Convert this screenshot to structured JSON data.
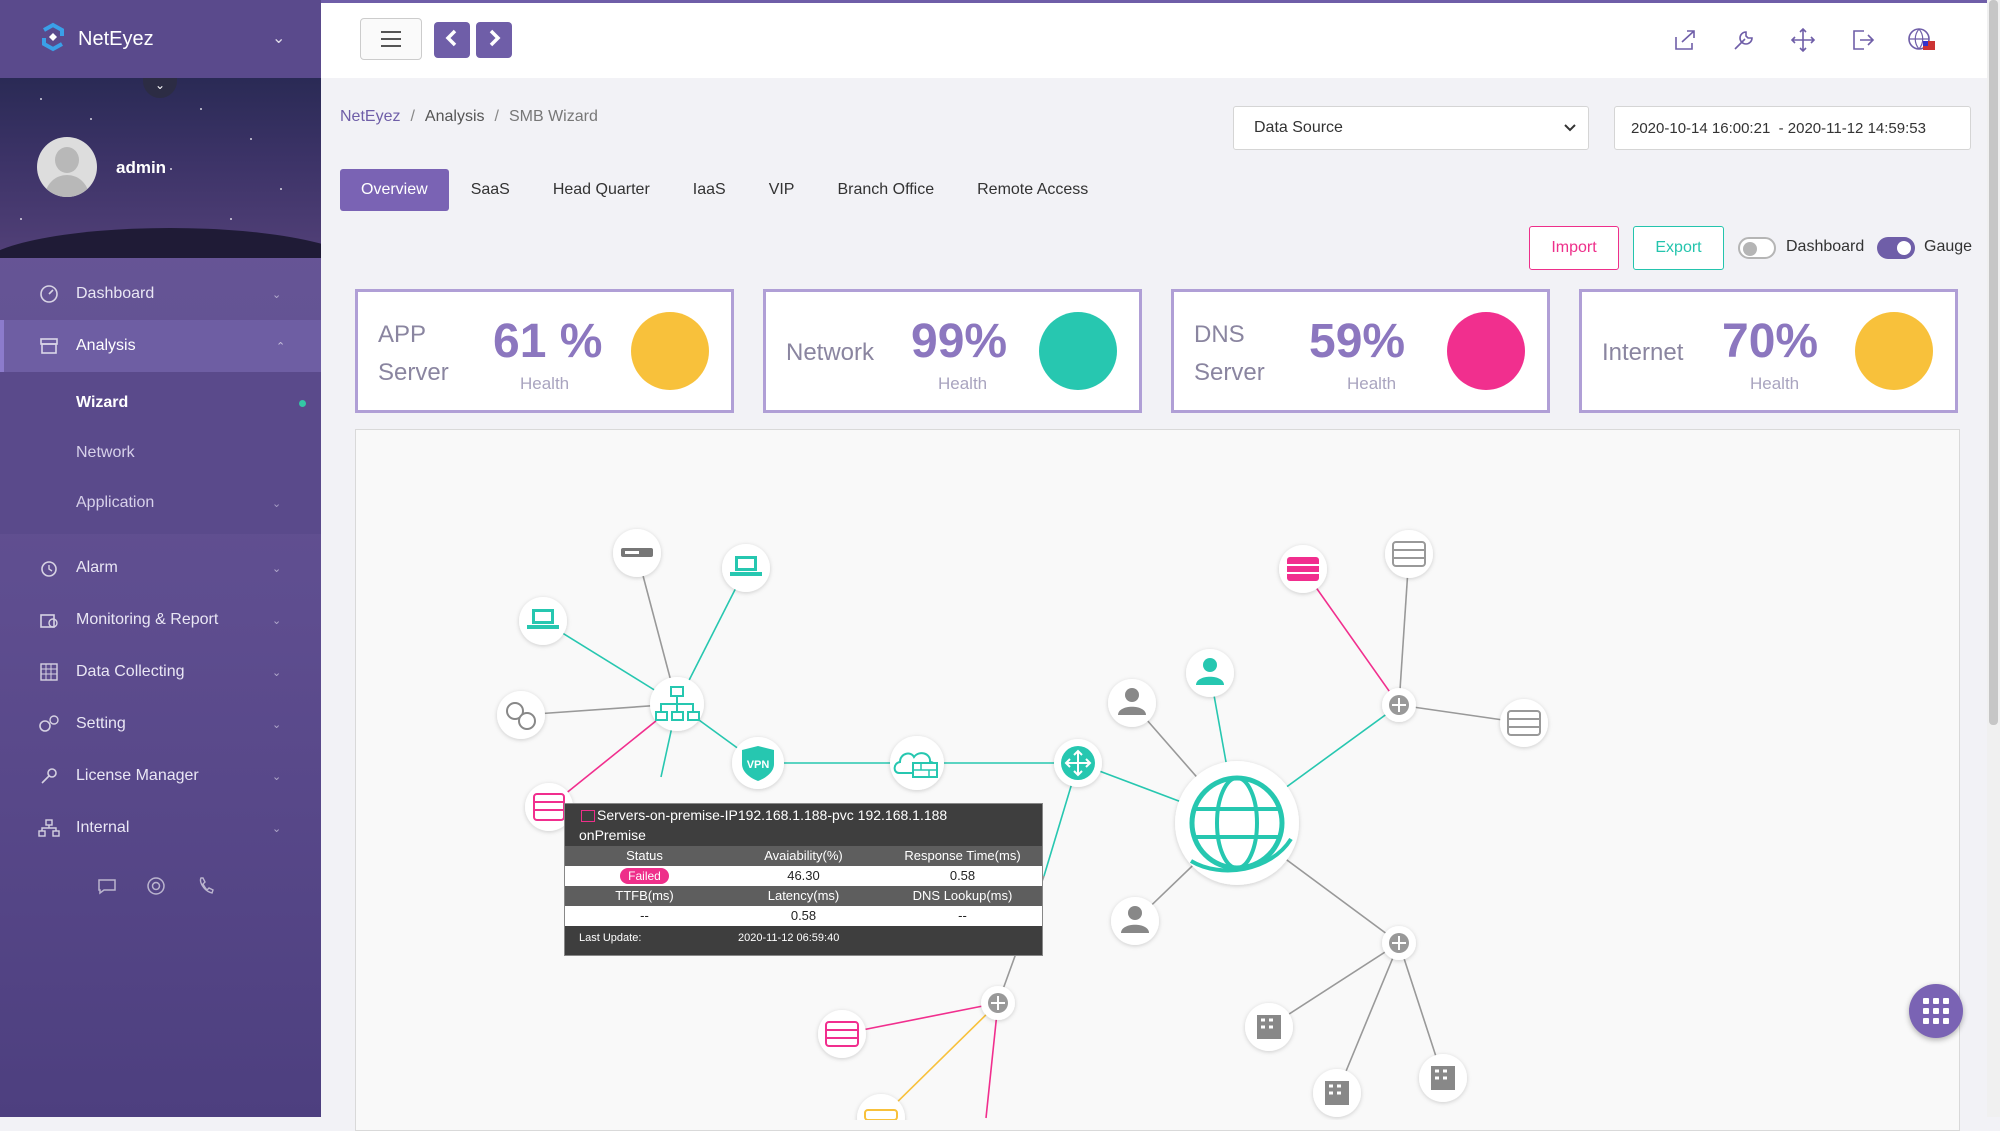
{
  "app": {
    "brand": "NetEyez"
  },
  "user": {
    "name": "admin"
  },
  "sidebar": {
    "items": [
      {
        "label": "Dashboard",
        "icon": "gauge-icon"
      },
      {
        "label": "Analysis",
        "icon": "archive-icon"
      },
      {
        "label": "Alarm",
        "icon": "alarm-clock-icon"
      },
      {
        "label": "Monitoring & Report",
        "icon": "report-icon"
      },
      {
        "label": "Data Collecting",
        "icon": "grid-icon"
      },
      {
        "label": "Setting",
        "icon": "gears-icon"
      },
      {
        "label": "License Manager",
        "icon": "key-icon"
      },
      {
        "label": "Internal",
        "icon": "sitemap-icon"
      }
    ],
    "sub_items": [
      {
        "label": "Wizard"
      },
      {
        "label": "Network"
      },
      {
        "label": "Application"
      }
    ]
  },
  "breadcrumb": {
    "home": "NetEyez",
    "section": "Analysis",
    "current": "SMB Wizard",
    "sep": "/"
  },
  "filters": {
    "data_source": "Data Source",
    "date_range": "2020-10-14 16:00:21  - 2020-11-12 14:59:53"
  },
  "tabs": [
    "Overview",
    "SaaS",
    "Head Quarter",
    "IaaS",
    "VIP",
    "Branch Office",
    "Remote Access"
  ],
  "actions": {
    "import": "Import",
    "export": "Export"
  },
  "toggles": {
    "dashboard": {
      "label": "Dashboard",
      "on": false
    },
    "gauge": {
      "label": "Gauge",
      "on": true
    }
  },
  "health_cards": [
    {
      "name_line1": "APP",
      "name_line2": "Server",
      "percent": "61 %",
      "caption": "Health",
      "color": "#f8c13b"
    },
    {
      "name_line1": "Network",
      "name_line2": "",
      "percent": "99%",
      "caption": "Health",
      "color": "#27c7b0"
    },
    {
      "name_line1": "DNS",
      "name_line2": "Server",
      "percent": "59%",
      "caption": "Health",
      "color": "#f12f8e"
    },
    {
      "name_line1": "Internet",
      "name_line2": "",
      "percent": "70%",
      "caption": "Health",
      "color": "#f8c13b"
    }
  ],
  "topology": {
    "vpn_label": "VPN",
    "node_icons": [
      "server-icon",
      "laptop-icon",
      "switch-icon",
      "vpn-shield-icon",
      "firewall-cloud-icon",
      "router-icon",
      "globe-icon",
      "user-icon",
      "building-icon",
      "cloud-server-icon"
    ]
  },
  "tooltip": {
    "title": "Servers-on-premise-IP192.168.1.188-pvc 192.168.1.188",
    "subtitle": "onPremise",
    "header1": [
      "Status",
      "Avaiability(%)",
      "Response Time(ms)"
    ],
    "values1": [
      "Failed",
      "46.30",
      "0.58"
    ],
    "header2": [
      "TTFB(ms)",
      "Latency(ms)",
      "DNS Lookup(ms)"
    ],
    "values2": [
      "--",
      "0.58",
      "--"
    ],
    "last_update_label": "Last Update:",
    "last_update": "2020-11-12 06:59:40"
  },
  "colors": {
    "accent": "#7a63b4",
    "teal": "#27c7b0",
    "pink": "#f12f8e",
    "amber": "#f8c13b"
  }
}
